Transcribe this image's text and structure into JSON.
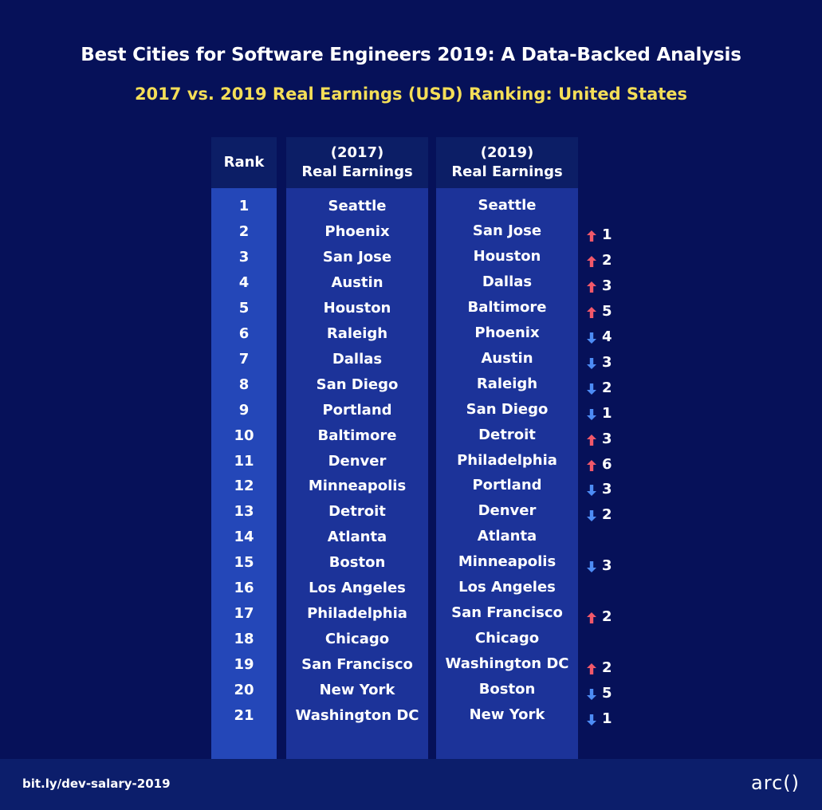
{
  "header": {
    "title": "Best Cities for Software Engineers 2019: A Data-Backed Analysis",
    "subtitle": "2017 vs. 2019 Real Earnings (USD) Ranking: United States"
  },
  "table": {
    "headers": {
      "rank": "Rank",
      "col2017_line1": "(2017)",
      "col2017_line2": "Real Earnings",
      "col2019_line1": "(2019)",
      "col2019_line2": "Real Earnings"
    },
    "rows": [
      {
        "rank": "1",
        "city2017": "Seattle",
        "city2019": "Seattle",
        "dir": "",
        "change": ""
      },
      {
        "rank": "2",
        "city2017": "Phoenix",
        "city2019": "San Jose",
        "dir": "up",
        "change": "1"
      },
      {
        "rank": "3",
        "city2017": "San Jose",
        "city2019": "Houston",
        "dir": "up",
        "change": "2"
      },
      {
        "rank": "4",
        "city2017": "Austin",
        "city2019": "Dallas",
        "dir": "up",
        "change": "3"
      },
      {
        "rank": "5",
        "city2017": "Houston",
        "city2019": "Baltimore",
        "dir": "up",
        "change": "5"
      },
      {
        "rank": "6",
        "city2017": "Raleigh",
        "city2019": "Phoenix",
        "dir": "down",
        "change": "4"
      },
      {
        "rank": "7",
        "city2017": "Dallas",
        "city2019": "Austin",
        "dir": "down",
        "change": "3"
      },
      {
        "rank": "8",
        "city2017": "San Diego",
        "city2019": "Raleigh",
        "dir": "down",
        "change": "2"
      },
      {
        "rank": "9",
        "city2017": "Portland",
        "city2019": "San Diego",
        "dir": "down",
        "change": "1"
      },
      {
        "rank": "10",
        "city2017": "Baltimore",
        "city2019": "Detroit",
        "dir": "up",
        "change": "3"
      },
      {
        "rank": "11",
        "city2017": "Denver",
        "city2019": "Philadelphia",
        "dir": "up",
        "change": "6"
      },
      {
        "rank": "12",
        "city2017": "Minneapolis",
        "city2019": "Portland",
        "dir": "down",
        "change": "3"
      },
      {
        "rank": "13",
        "city2017": "Detroit",
        "city2019": "Denver",
        "dir": "down",
        "change": "2"
      },
      {
        "rank": "14",
        "city2017": "Atlanta",
        "city2019": "Atlanta",
        "dir": "",
        "change": ""
      },
      {
        "rank": "15",
        "city2017": "Boston",
        "city2019": "Minneapolis",
        "dir": "down",
        "change": "3"
      },
      {
        "rank": "16",
        "city2017": "Los Angeles",
        "city2019": "Los Angeles",
        "dir": "",
        "change": ""
      },
      {
        "rank": "17",
        "city2017": "Philadelphia",
        "city2019": "San Francisco",
        "dir": "up",
        "change": "2"
      },
      {
        "rank": "18",
        "city2017": "Chicago",
        "city2019": "Chicago",
        "dir": "",
        "change": ""
      },
      {
        "rank": "19",
        "city2017": "San Francisco",
        "city2019": "Washington DC",
        "dir": "up",
        "change": "2"
      },
      {
        "rank": "20",
        "city2017": "New York",
        "city2019": "Boston",
        "dir": "down",
        "change": "5"
      },
      {
        "rank": "21",
        "city2017": "Washington DC",
        "city2019": "New York",
        "dir": "down",
        "change": "1"
      }
    ]
  },
  "colors": {
    "background": "#061159",
    "subtitle": "#f4de58",
    "up_arrow": "#f2586a",
    "down_arrow": "#4d8cf5"
  },
  "footer": {
    "link": "bit.ly/dev-salary-2019",
    "logo": "arc()"
  }
}
